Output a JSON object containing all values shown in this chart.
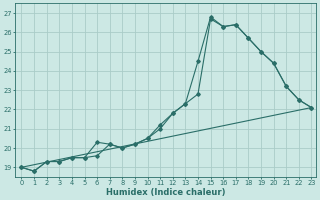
{
  "xlabel": "Humidex (Indice chaleur)",
  "bg_color": "#cce8e4",
  "grid_color": "#aaccc8",
  "line_color": "#2a6e68",
  "xlim_min": -0.5,
  "xlim_max": 23.4,
  "ylim_min": 18.5,
  "ylim_max": 27.5,
  "xticks": [
    0,
    1,
    2,
    3,
    4,
    5,
    6,
    7,
    8,
    9,
    10,
    11,
    12,
    13,
    14,
    15,
    16,
    17,
    18,
    19,
    20,
    21,
    22,
    23
  ],
  "yticks": [
    19,
    20,
    21,
    22,
    23,
    24,
    25,
    26,
    27
  ],
  "line1_x": [
    0,
    1,
    2,
    3,
    4,
    5,
    6,
    7,
    8,
    9,
    10,
    11,
    12,
    13,
    14,
    15,
    16,
    17,
    18,
    19,
    20,
    21,
    22,
    23
  ],
  "line1_y": [
    19.0,
    18.8,
    19.3,
    19.3,
    19.5,
    19.5,
    19.6,
    20.2,
    20.0,
    20.2,
    20.5,
    21.2,
    21.8,
    22.3,
    24.5,
    26.8,
    26.3,
    26.4,
    25.7,
    25.0,
    24.4,
    23.2,
    22.5,
    22.1
  ],
  "line2_x": [
    0,
    1,
    2,
    3,
    4,
    5,
    6,
    7,
    8,
    9,
    10,
    11,
    12,
    13,
    14,
    15,
    16,
    17,
    18,
    19,
    20,
    21,
    22,
    23
  ],
  "line2_y": [
    19.0,
    18.8,
    19.3,
    19.3,
    19.5,
    19.5,
    20.3,
    20.2,
    20.0,
    20.2,
    20.5,
    21.0,
    21.8,
    22.3,
    22.8,
    26.7,
    26.3,
    26.4,
    25.7,
    25.0,
    24.4,
    23.2,
    22.5,
    22.1
  ],
  "line3_x": [
    0,
    23
  ],
  "line3_y": [
    19.0,
    22.1
  ],
  "xlabel_fontsize": 6.0,
  "tick_fontsize": 4.8,
  "marker_size": 1.8,
  "line_width": 0.8
}
